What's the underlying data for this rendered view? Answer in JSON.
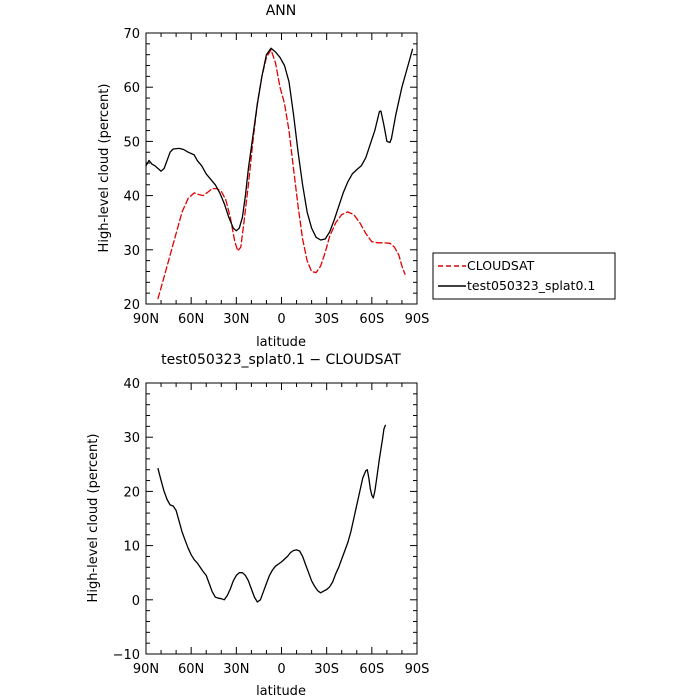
{
  "chart_data": [
    {
      "type": "line",
      "title": "ANN",
      "xlabel": "latitude",
      "ylabel": "High-level cloud (percent)",
      "xlim": [
        90,
        -90
      ],
      "ylim": [
        20,
        70
      ],
      "x_ticks": [
        90,
        60,
        30,
        0,
        -30,
        -60,
        -90
      ],
      "x_tick_labels": [
        "90N",
        "60N",
        "30N",
        "0",
        "30S",
        "60S",
        "90S"
      ],
      "y_ticks": [
        20,
        30,
        40,
        50,
        60,
        70
      ],
      "y_tick_labels": [
        "20",
        "30",
        "40",
        "50",
        "60",
        "70"
      ],
      "legend": {
        "placement": "right",
        "entries": [
          "CLOUDSAT",
          "test050323_splat0.1"
        ]
      },
      "series": [
        {
          "name": "CLOUDSAT",
          "color": "#e00000",
          "style": "dashed",
          "points": [
            [
              82,
              21
            ],
            [
              78,
              25
            ],
            [
              74,
              29
            ],
            [
              70,
              33
            ],
            [
              66,
              37
            ],
            [
              62,
              39.5
            ],
            [
              58,
              40.5
            ],
            [
              55,
              40.2
            ],
            [
              52,
              40
            ],
            [
              49,
              40.6
            ],
            [
              46,
              41.3
            ],
            [
              43,
              41.3
            ],
            [
              40,
              40.8
            ],
            [
              37,
              39.2
            ],
            [
              34,
              36
            ],
            [
              31,
              31.5
            ],
            [
              29,
              29.8
            ],
            [
              27,
              30.5
            ],
            [
              25,
              35
            ],
            [
              22,
              42
            ],
            [
              19,
              50
            ],
            [
              16,
              57
            ],
            [
              13,
              62
            ],
            [
              10,
              65.5
            ],
            [
              7,
              66.9
            ],
            [
              4,
              64.5
            ],
            [
              1,
              60
            ],
            [
              -2,
              57
            ],
            [
              -5,
              52
            ],
            [
              -8,
              45
            ],
            [
              -11,
              38
            ],
            [
              -14,
              32
            ],
            [
              -17,
              28
            ],
            [
              -20,
              26
            ],
            [
              -23,
              25.8
            ],
            [
              -26,
              27
            ],
            [
              -29,
              29.5
            ],
            [
              -32,
              32.5
            ],
            [
              -36,
              35
            ],
            [
              -40,
              36.5
            ],
            [
              -44,
              37
            ],
            [
              -48,
              36.5
            ],
            [
              -52,
              35
            ],
            [
              -56,
              33
            ],
            [
              -60,
              31.5
            ],
            [
              -64,
              31.3
            ],
            [
              -68,
              31.3
            ],
            [
              -72,
              31.2
            ],
            [
              -75,
              30.5
            ],
            [
              -78,
              29
            ],
            [
              -80,
              27
            ],
            [
              -82,
              25.5
            ]
          ]
        },
        {
          "name": "test050323_splat0.1",
          "color": "#000000",
          "style": "solid",
          "points": [
            [
              90,
              45.5
            ],
            [
              88,
              46.5
            ],
            [
              86,
              45.8
            ],
            [
              84,
              45.5
            ],
            [
              82,
              45
            ],
            [
              80,
              44.5
            ],
            [
              78,
              45
            ],
            [
              76,
              46.5
            ],
            [
              74,
              48
            ],
            [
              72,
              48.6
            ],
            [
              68,
              48.7
            ],
            [
              65,
              48.5
            ],
            [
              62,
              48
            ],
            [
              58,
              47.5
            ],
            [
              56,
              46.5
            ],
            [
              53,
              45.5
            ],
            [
              50,
              44
            ],
            [
              47,
              43
            ],
            [
              44,
              42
            ],
            [
              41,
              40.5
            ],
            [
              38,
              38.5
            ],
            [
              35,
              36
            ],
            [
              32,
              34
            ],
            [
              30,
              33.5
            ],
            [
              28,
              34
            ],
            [
              26,
              36
            ],
            [
              24,
              40
            ],
            [
              22,
              45
            ],
            [
              19,
              51
            ],
            [
              16,
              57
            ],
            [
              13,
              62
            ],
            [
              10,
              66
            ],
            [
              7,
              67.2
            ],
            [
              4,
              66.5
            ],
            [
              1,
              65.5
            ],
            [
              -2,
              64
            ],
            [
              -5,
              61
            ],
            [
              -8,
              55
            ],
            [
              -11,
              48
            ],
            [
              -14,
              42
            ],
            [
              -17,
              37
            ],
            [
              -20,
              34
            ],
            [
              -23,
              32.3
            ],
            [
              -26,
              31.8
            ],
            [
              -29,
              32
            ],
            [
              -32,
              33.3
            ],
            [
              -35,
              35.5
            ],
            [
              -38,
              38
            ],
            [
              -41,
              40.5
            ],
            [
              -44,
              42.5
            ],
            [
              -47,
              44
            ],
            [
              -50,
              44.8
            ],
            [
              -53,
              45.5
            ],
            [
              -56,
              47
            ],
            [
              -59,
              49.5
            ],
            [
              -62,
              52
            ],
            [
              -65,
              55.5
            ],
            [
              -66,
              55.6
            ],
            [
              -68,
              53
            ],
            [
              -70,
              50
            ],
            [
              -72,
              49.8
            ],
            [
              -73,
              50.5
            ],
            [
              -76,
              55
            ],
            [
              -80,
              60
            ],
            [
              -84,
              64
            ],
            [
              -87,
              67
            ]
          ]
        }
      ]
    },
    {
      "type": "line",
      "title": "test050323_splat0.1 − CLOUDSAT",
      "xlabel": "latitude",
      "ylabel": "High-level cloud (percent)",
      "xlim": [
        90,
        -90
      ],
      "ylim": [
        -10,
        40
      ],
      "x_ticks": [
        90,
        60,
        30,
        0,
        -30,
        -60,
        -90
      ],
      "x_tick_labels": [
        "90N",
        "60N",
        "30N",
        "0",
        "30S",
        "60S",
        "90S"
      ],
      "y_ticks": [
        -10,
        0,
        10,
        20,
        30,
        40
      ],
      "y_tick_labels": [
        "−10",
        "0",
        "10",
        "20",
        "30",
        "40"
      ],
      "series": [
        {
          "color": "#000000",
          "style": "solid",
          "points": [
            [
              82,
              24.2
            ],
            [
              80,
              22
            ],
            [
              78,
              20
            ],
            [
              76,
              18.5
            ],
            [
              74,
              17.5
            ],
            [
              72,
              17.3
            ],
            [
              70,
              16.5
            ],
            [
              68,
              14.5
            ],
            [
              66,
              12.5
            ],
            [
              64,
              11
            ],
            [
              62,
              9.5
            ],
            [
              60,
              8.3
            ],
            [
              58,
              7.4
            ],
            [
              56,
              6.8
            ],
            [
              54,
              6
            ],
            [
              52,
              5.2
            ],
            [
              50,
              4.5
            ],
            [
              48,
              3
            ],
            [
              46,
              1.5
            ],
            [
              44,
              0.5
            ],
            [
              42,
              0.3
            ],
            [
              40,
              0.2
            ],
            [
              38,
              0
            ],
            [
              36,
              0.8
            ],
            [
              34,
              2
            ],
            [
              32,
              3.5
            ],
            [
              30,
              4.5
            ],
            [
              28,
              5
            ],
            [
              26,
              5
            ],
            [
              24,
              4.5
            ],
            [
              22,
              3.5
            ],
            [
              20,
              2
            ],
            [
              18,
              0.5
            ],
            [
              16,
              -0.4
            ],
            [
              14,
              0
            ],
            [
              12,
              1.5
            ],
            [
              10,
              3
            ],
            [
              8,
              4.5
            ],
            [
              6,
              5.5
            ],
            [
              4,
              6.2
            ],
            [
              2,
              6.6
            ],
            [
              0,
              7
            ],
            [
              -2,
              7.5
            ],
            [
              -4,
              8
            ],
            [
              -6,
              8.7
            ],
            [
              -8,
              9.1
            ],
            [
              -10,
              9.2
            ],
            [
              -12,
              9
            ],
            [
              -14,
              8
            ],
            [
              -16,
              6.5
            ],
            [
              -18,
              5
            ],
            [
              -20,
              3.5
            ],
            [
              -22,
              2.5
            ],
            [
              -24,
              1.7
            ],
            [
              -26,
              1.3
            ],
            [
              -28,
              1.6
            ],
            [
              -30,
              1.9
            ],
            [
              -32,
              2.4
            ],
            [
              -34,
              3.3
            ],
            [
              -36,
              4.8
            ],
            [
              -38,
              6
            ],
            [
              -40,
              7.5
            ],
            [
              -42,
              9
            ],
            [
              -44,
              10.5
            ],
            [
              -46,
              12.5
            ],
            [
              -48,
              15
            ],
            [
              -50,
              17.5
            ],
            [
              -52,
              20
            ],
            [
              -54,
              22.5
            ],
            [
              -56,
              23.8
            ],
            [
              -57,
              24
            ],
            [
              -58,
              22.5
            ],
            [
              -59,
              20.5
            ],
            [
              -60,
              19.3
            ],
            [
              -61,
              18.8
            ],
            [
              -62,
              20
            ],
            [
              -63,
              22
            ],
            [
              -65,
              26
            ],
            [
              -67,
              29.5
            ],
            [
              -68,
              31.5
            ],
            [
              -69,
              32.2
            ]
          ]
        }
      ]
    }
  ]
}
